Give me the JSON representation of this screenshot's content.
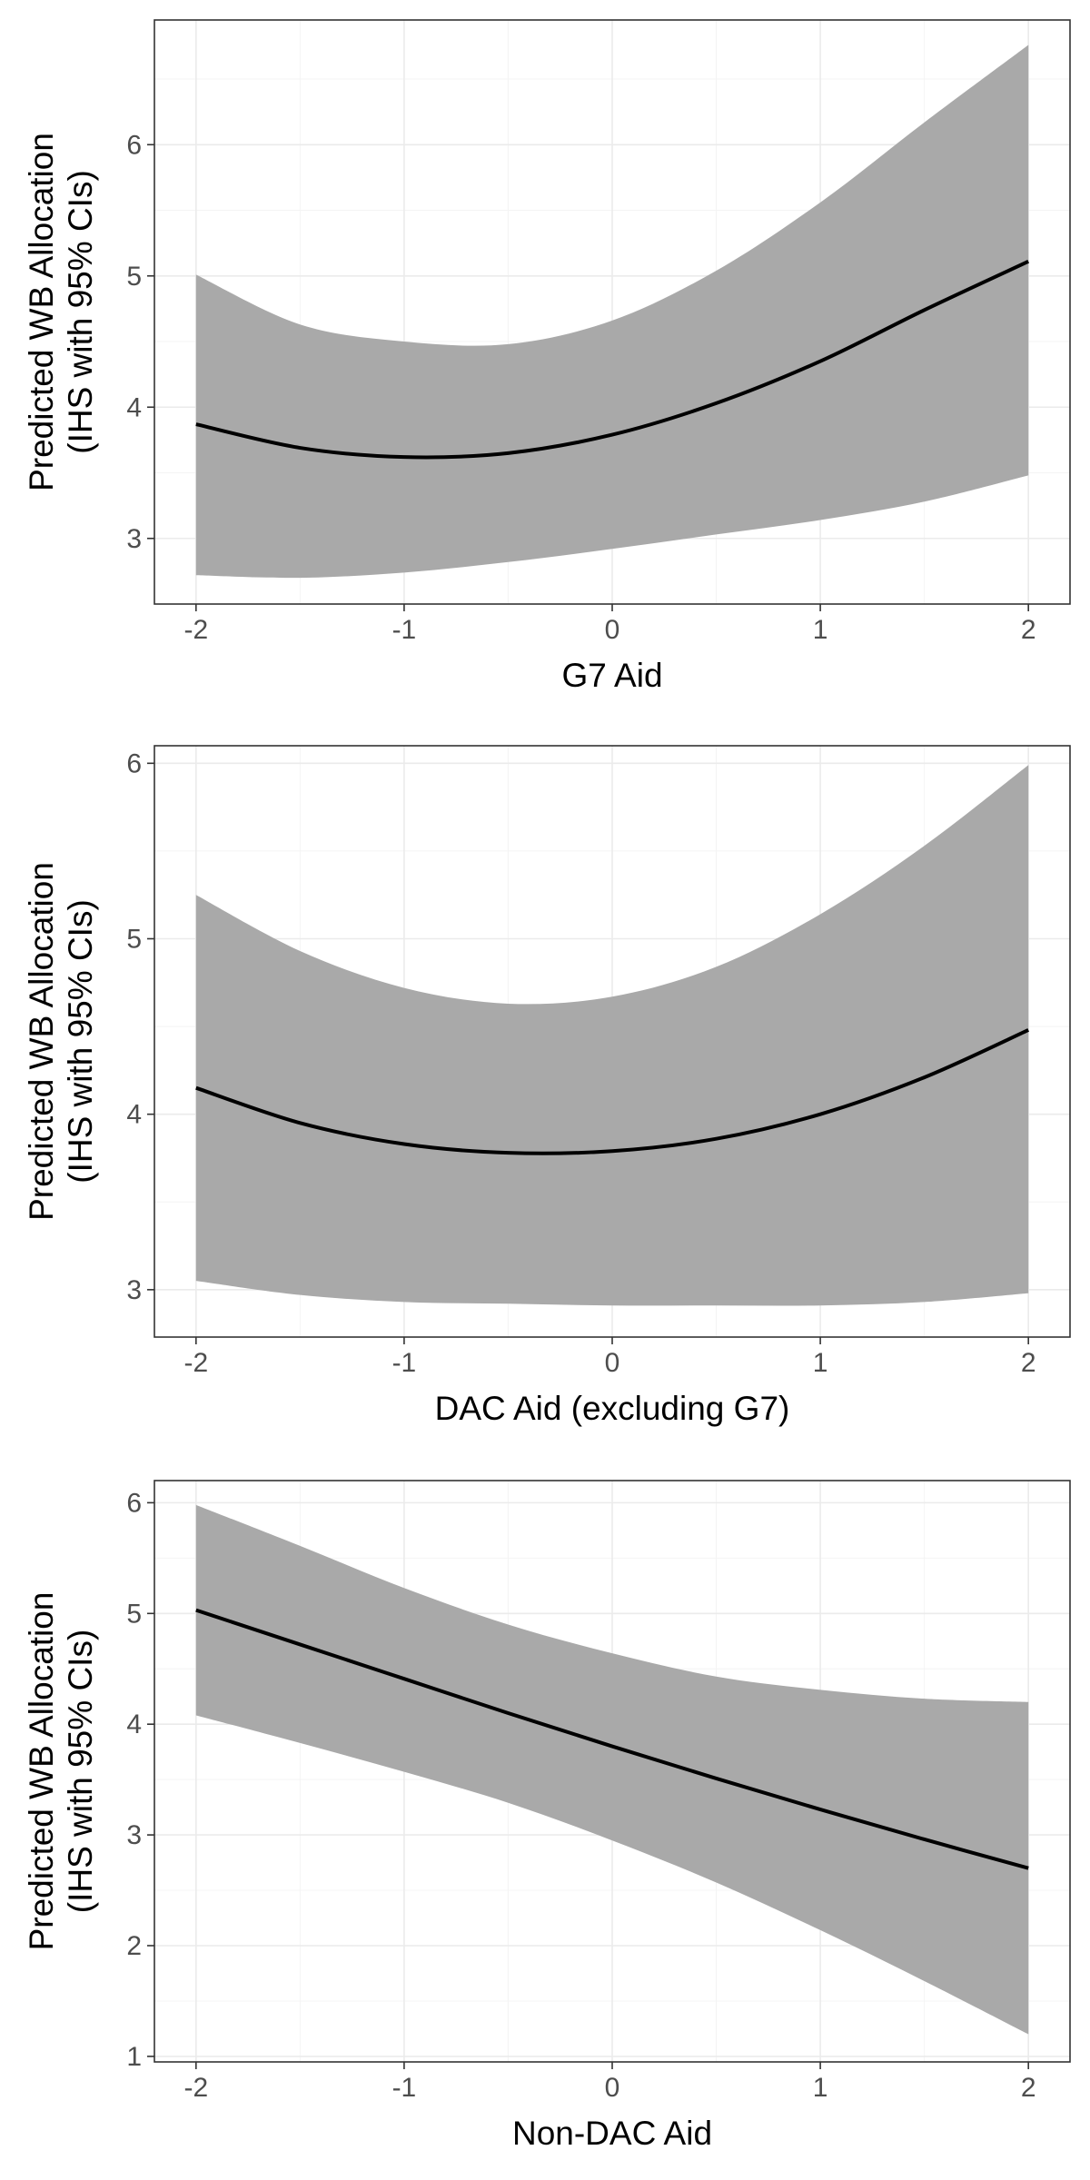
{
  "chart_data": [
    {
      "type": "line",
      "xlabel": "G7 Aid",
      "ylabel_lines": [
        "Predicted WB Allocation",
        "(IHS with 95% CIs)"
      ],
      "xlim": [
        -2.2,
        2.2
      ],
      "ylim": [
        2.5,
        6.95
      ],
      "x_ticks": [
        -2,
        -1,
        0,
        1,
        2
      ],
      "y_ticks": [
        3,
        4,
        5,
        6
      ],
      "grid": true,
      "colors": {
        "line": "#000000",
        "band": "#A9A9A9"
      },
      "series": [
        {
          "x": [
            -2.0,
            -1.5,
            -1.0,
            -0.5,
            0.0,
            0.5,
            1.0,
            1.5,
            2.0
          ],
          "y": [
            3.87,
            3.69,
            3.62,
            3.65,
            3.79,
            4.03,
            4.35,
            4.74,
            5.11
          ],
          "lower": [
            2.72,
            2.7,
            2.74,
            2.82,
            2.92,
            3.03,
            3.14,
            3.28,
            3.48
          ],
          "upper": [
            5.01,
            4.63,
            4.5,
            4.48,
            4.66,
            5.04,
            5.56,
            6.17,
            6.76
          ]
        }
      ]
    },
    {
      "type": "line",
      "xlabel": "DAC Aid (excluding G7)",
      "ylabel_lines": [
        "Predicted WB Allocation",
        "(IHS with 95% CIs)"
      ],
      "xlim": [
        -2.2,
        2.2
      ],
      "ylim": [
        2.73,
        6.1
      ],
      "x_ticks": [
        -2,
        -1,
        0,
        1,
        2
      ],
      "y_ticks": [
        3,
        4,
        5,
        6
      ],
      "grid": true,
      "colors": {
        "line": "#000000",
        "band": "#A9A9A9"
      },
      "series": [
        {
          "x": [
            -2.0,
            -1.5,
            -1.0,
            -0.5,
            0.0,
            0.5,
            1.0,
            1.5,
            2.0
          ],
          "y": [
            4.15,
            3.95,
            3.83,
            3.78,
            3.79,
            3.86,
            4.0,
            4.21,
            4.48
          ],
          "lower": [
            3.05,
            2.97,
            2.93,
            2.92,
            2.91,
            2.91,
            2.91,
            2.93,
            2.98
          ],
          "upper": [
            5.25,
            4.93,
            4.72,
            4.63,
            4.67,
            4.84,
            5.14,
            5.53,
            5.99
          ]
        }
      ]
    },
    {
      "type": "line",
      "xlabel": "Non-DAC Aid",
      "ylabel_lines": [
        "Predicted WB Allocation",
        "(IHS with 95% CIs)"
      ],
      "xlim": [
        -2.2,
        2.2
      ],
      "ylim": [
        0.95,
        6.2
      ],
      "x_ticks": [
        -2,
        -1,
        0,
        1,
        2
      ],
      "y_ticks": [
        1,
        2,
        3,
        4,
        5,
        6
      ],
      "grid": true,
      "colors": {
        "line": "#000000",
        "band": "#A9A9A9"
      },
      "series": [
        {
          "x": [
            -2.0,
            -1.5,
            -1.0,
            -0.5,
            0.0,
            0.5,
            1.0,
            1.5,
            2.0
          ],
          "y": [
            5.03,
            4.72,
            4.41,
            4.1,
            3.8,
            3.51,
            3.23,
            2.96,
            2.7
          ],
          "lower": [
            4.08,
            3.83,
            3.57,
            3.29,
            2.95,
            2.57,
            2.14,
            1.68,
            1.2
          ],
          "upper": [
            5.98,
            5.61,
            5.23,
            4.9,
            4.64,
            4.43,
            4.31,
            4.23,
            4.2
          ]
        }
      ]
    }
  ]
}
